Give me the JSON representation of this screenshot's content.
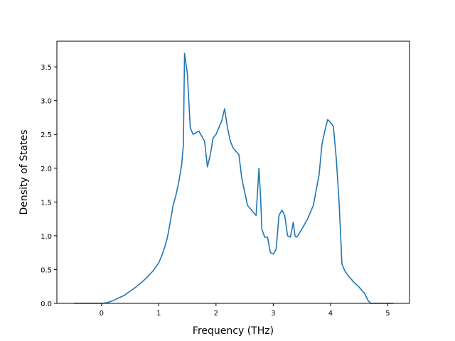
{
  "chart_data": {
    "type": "line",
    "title": "",
    "xlabel": "Frequency (THz)",
    "ylabel": "Density of States",
    "xlim": [
      -0.78,
      5.38
    ],
    "ylim": [
      0.0,
      3.88
    ],
    "xticks": [
      0,
      1,
      2,
      3,
      4,
      5
    ],
    "xtick_labels": [
      "0",
      "1",
      "2",
      "3",
      "4",
      "5"
    ],
    "yticks": [
      0.0,
      0.5,
      1.0,
      1.5,
      2.0,
      2.5,
      3.0,
      3.5
    ],
    "ytick_labels": [
      "0.0",
      "0.5",
      "1.0",
      "1.5",
      "2.0",
      "2.5",
      "3.0",
      "3.5"
    ],
    "grid": false,
    "legend": "none",
    "series": [
      {
        "color": "#1f77b4",
        "x": [
          -0.48,
          -0.2,
          0.0,
          0.1,
          0.2,
          0.3,
          0.4,
          0.5,
          0.6,
          0.7,
          0.8,
          0.9,
          1.0,
          1.05,
          1.1,
          1.15,
          1.2,
          1.25,
          1.3,
          1.35,
          1.4,
          1.43,
          1.45,
          1.5,
          1.55,
          1.6,
          1.7,
          1.8,
          1.85,
          1.9,
          1.95,
          2.0,
          2.1,
          2.15,
          2.2,
          2.25,
          2.3,
          2.4,
          2.45,
          2.5,
          2.55,
          2.6,
          2.7,
          2.75,
          2.78,
          2.8,
          2.85,
          2.9,
          2.95,
          3.0,
          3.05,
          3.1,
          3.15,
          3.2,
          3.25,
          3.3,
          3.35,
          3.38,
          3.4,
          3.43,
          3.5,
          3.6,
          3.7,
          3.8,
          3.85,
          3.9,
          3.95,
          4.0,
          4.05,
          4.1,
          4.15,
          4.2,
          4.25,
          4.3,
          4.4,
          4.5,
          4.6,
          4.65,
          4.7,
          5.1
        ],
        "y": [
          0.0,
          0.0,
          0.0,
          0.01,
          0.04,
          0.08,
          0.12,
          0.18,
          0.24,
          0.31,
          0.39,
          0.48,
          0.6,
          0.7,
          0.82,
          0.97,
          1.2,
          1.45,
          1.6,
          1.8,
          2.05,
          2.35,
          3.7,
          3.4,
          2.6,
          2.5,
          2.55,
          2.4,
          2.02,
          2.2,
          2.45,
          2.5,
          2.7,
          2.88,
          2.6,
          2.4,
          2.3,
          2.2,
          1.85,
          1.65,
          1.45,
          1.4,
          1.3,
          2.0,
          1.55,
          1.1,
          0.98,
          0.98,
          0.75,
          0.73,
          0.8,
          1.3,
          1.38,
          1.3,
          1.0,
          0.98,
          1.2,
          1.0,
          0.98,
          1.0,
          1.1,
          1.25,
          1.45,
          1.9,
          2.35,
          2.55,
          2.72,
          2.68,
          2.62,
          2.15,
          1.5,
          0.58,
          0.48,
          0.42,
          0.32,
          0.24,
          0.14,
          0.05,
          0.0,
          0.0
        ]
      }
    ]
  }
}
